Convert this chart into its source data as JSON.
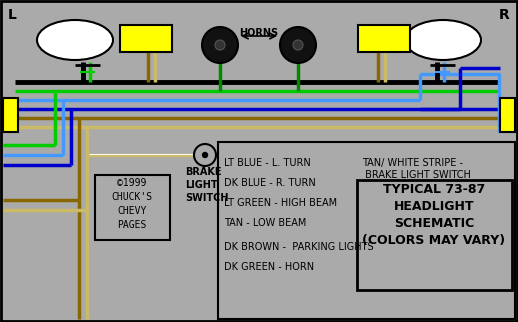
{
  "bg_color": "#aaaaaa",
  "title_L": "L",
  "title_R": "R",
  "legend_lines": [
    "LT BLUE - L. TURN",
    "DK BLUE - R. TURN",
    "LT GREEN - HIGH BEAM",
    "TAN - LOW BEAM",
    "DK BROWN -  PARKING LIGHTS",
    "DK GREEN - HORN"
  ],
  "legend_right1": "TAN/ WHITE STRIPE -",
  "legend_right2": " BRAKE LIGHT SWITCH",
  "box_title": "TYPICAL 73-87\nHEADLIGHT\nSCHEMATIC\n(COLORS MAY VARY)",
  "copyright": "©1999\nCHUCK'S\nCHEVY\nPAGES",
  "brake_label": "BRAKE\nLIGHT\nSWITCH",
  "horns_label": "HORNS",
  "lt_blue": "#4499ff",
  "dk_blue": "#0000cc",
  "lt_green": "#00cc00",
  "dk_green": "#008800",
  "black": "#000000",
  "brown": "#886600",
  "tan": "#ccbb66",
  "white": "#ffffff",
  "yellow": "#ffff00",
  "gray": "#aaaaaa"
}
